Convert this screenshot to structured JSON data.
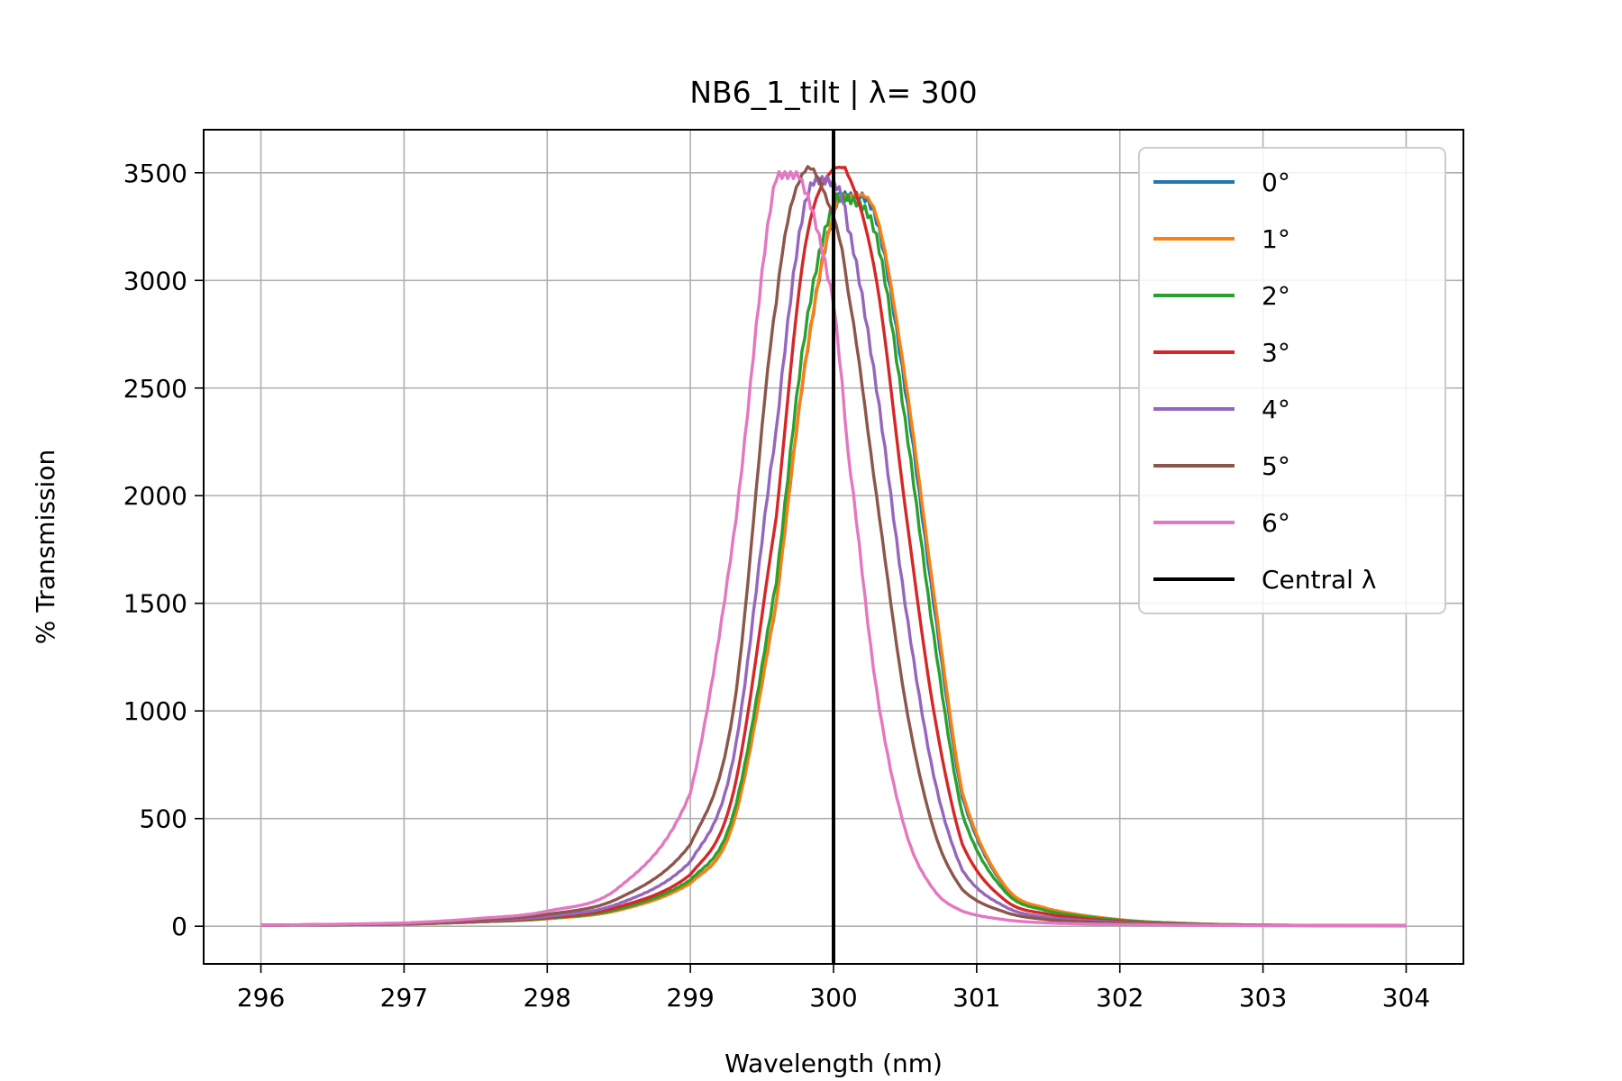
{
  "chart_data": {
    "type": "line",
    "title": "NB6_1_tilt | λ= 300",
    "xlabel": "Wavelength (nm)",
    "ylabel": "% Transmission",
    "xlim": [
      295.6,
      304.4
    ],
    "ylim": [
      -175,
      3700
    ],
    "xticks": [
      296,
      297,
      298,
      299,
      300,
      301,
      302,
      303,
      304
    ],
    "yticks": [
      0,
      500,
      1000,
      1500,
      2000,
      2500,
      3000,
      3500
    ],
    "grid": true,
    "legend_position": "top-right",
    "series": [
      {
        "name": "0°",
        "color": "#1f77b4",
        "center": 300.1,
        "peak": 3390,
        "x": [
          296,
          297,
          297.5,
          298,
          298.5,
          299,
          299.3,
          299.6,
          299.8,
          300.0,
          300.1,
          300.3,
          300.5,
          300.7,
          300.9,
          301.2,
          301.5,
          302,
          302.5,
          303,
          304
        ],
        "y": [
          5,
          10,
          20,
          35,
          75,
          200,
          480,
          1500,
          2600,
          3300,
          3390,
          3280,
          2500,
          1500,
          600,
          180,
          80,
          30,
          12,
          5,
          3
        ]
      },
      {
        "name": "1°",
        "color": "#ff7f0e",
        "center": 300.08,
        "peak": 3390,
        "x": [
          296,
          297,
          297.5,
          298,
          298.5,
          299,
          299.3,
          299.6,
          299.8,
          300.0,
          300.1,
          300.3,
          300.5,
          300.7,
          300.9,
          301.2,
          301.5,
          302,
          302.5,
          303,
          304
        ],
        "y": [
          5,
          10,
          20,
          35,
          75,
          200,
          480,
          1500,
          2600,
          3300,
          3390,
          3300,
          2550,
          1550,
          620,
          185,
          80,
          30,
          12,
          5,
          3
        ]
      },
      {
        "name": "2°",
        "color": "#2ca02c",
        "center": 300.05,
        "peak": 3380,
        "x": [
          296,
          297,
          297.5,
          298,
          298.5,
          299,
          299.3,
          299.6,
          299.8,
          300.0,
          300.1,
          300.3,
          300.5,
          300.7,
          300.9,
          301.2,
          301.5,
          302,
          302.5,
          303,
          304
        ],
        "y": [
          5,
          10,
          20,
          37,
          80,
          215,
          520,
          1600,
          2750,
          3350,
          3380,
          3200,
          2350,
          1350,
          520,
          160,
          70,
          28,
          11,
          5,
          3
        ]
      },
      {
        "name": "3°",
        "color": "#d62728",
        "center": 300.0,
        "peak": 3520,
        "x": [
          296,
          297,
          297.5,
          298,
          298.5,
          299,
          299.3,
          299.6,
          299.8,
          300.0,
          300.1,
          300.3,
          300.5,
          300.7,
          300.9,
          301.2,
          301.5,
          302,
          302.5,
          303,
          304
        ],
        "y": [
          5,
          11,
          22,
          40,
          90,
          240,
          620,
          1900,
          3150,
          3520,
          3490,
          3000,
          1950,
          1000,
          380,
          120,
          55,
          22,
          9,
          4,
          3
        ]
      },
      {
        "name": "4°",
        "color": "#9467bd",
        "center": 299.88,
        "peak": 3480,
        "x": [
          296,
          297,
          297.5,
          298,
          298.5,
          299,
          299.3,
          299.6,
          299.8,
          300.0,
          300.1,
          300.3,
          300.5,
          300.7,
          300.9,
          301.2,
          301.5,
          302,
          302.5,
          303,
          304
        ],
        "y": [
          5,
          12,
          25,
          45,
          105,
          300,
          780,
          2300,
          3350,
          3450,
          3250,
          2500,
          1500,
          700,
          260,
          90,
          40,
          18,
          8,
          4,
          3
        ]
      },
      {
        "name": "5°",
        "color": "#8c564b",
        "center": 299.8,
        "peak": 3520,
        "x": [
          296,
          297,
          297.5,
          298,
          298.5,
          299,
          299.3,
          299.6,
          299.8,
          300.0,
          300.1,
          300.3,
          300.5,
          300.7,
          300.9,
          301.2,
          301.5,
          302,
          302.5,
          303,
          304
        ],
        "y": [
          5,
          13,
          28,
          55,
          130,
          380,
          1000,
          2900,
          3510,
          3300,
          2950,
          2000,
          1050,
          450,
          170,
          65,
          30,
          14,
          7,
          4,
          3
        ]
      },
      {
        "name": "6°",
        "color": "#e377c2",
        "center": 299.62,
        "peak": 3510,
        "x": [
          296,
          297,
          297.5,
          298,
          298.5,
          299,
          299.3,
          299.6,
          299.8,
          300.0,
          300.1,
          300.3,
          300.5,
          300.7,
          300.9,
          301.2,
          301.5,
          302,
          302.5,
          303,
          304
        ],
        "y": [
          5,
          15,
          35,
          70,
          180,
          620,
          1800,
          3480,
          3420,
          2900,
          2200,
          1100,
          450,
          170,
          70,
          30,
          15,
          8,
          5,
          3,
          3
        ]
      }
    ],
    "vline": {
      "name": "Central λ",
      "x": 300,
      "color": "#000000"
    }
  }
}
